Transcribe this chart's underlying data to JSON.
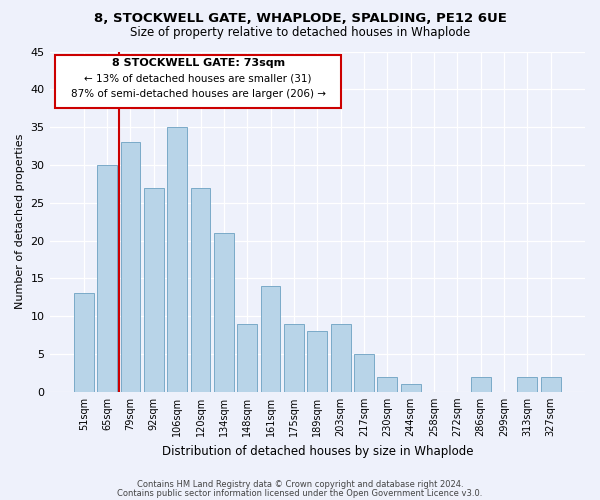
{
  "title1": "8, STOCKWELL GATE, WHAPLODE, SPALDING, PE12 6UE",
  "title2": "Size of property relative to detached houses in Whaplode",
  "xlabel": "Distribution of detached houses by size in Whaplode",
  "ylabel": "Number of detached properties",
  "bar_labels": [
    "51sqm",
    "65sqm",
    "79sqm",
    "92sqm",
    "106sqm",
    "120sqm",
    "134sqm",
    "148sqm",
    "161sqm",
    "175sqm",
    "189sqm",
    "203sqm",
    "217sqm",
    "230sqm",
    "244sqm",
    "258sqm",
    "272sqm",
    "286sqm",
    "299sqm",
    "313sqm",
    "327sqm"
  ],
  "bar_values": [
    13,
    30,
    33,
    27,
    35,
    27,
    21,
    9,
    14,
    9,
    8,
    9,
    5,
    2,
    1,
    0,
    0,
    2,
    0,
    2,
    2
  ],
  "bar_color": "#b8d4e8",
  "bar_edge_color": "#7aaac8",
  "reference_line_color": "#cc0000",
  "ylim": [
    0,
    45
  ],
  "yticks": [
    0,
    5,
    10,
    15,
    20,
    25,
    30,
    35,
    40,
    45
  ],
  "annotation_box_title": "8 STOCKWELL GATE: 73sqm",
  "annotation_line1": "← 13% of detached houses are smaller (31)",
  "annotation_line2": "87% of semi-detached houses are larger (206) →",
  "footer1": "Contains HM Land Registry data © Crown copyright and database right 2024.",
  "footer2": "Contains public sector information licensed under the Open Government Licence v3.0.",
  "background_color": "#eef1fb"
}
